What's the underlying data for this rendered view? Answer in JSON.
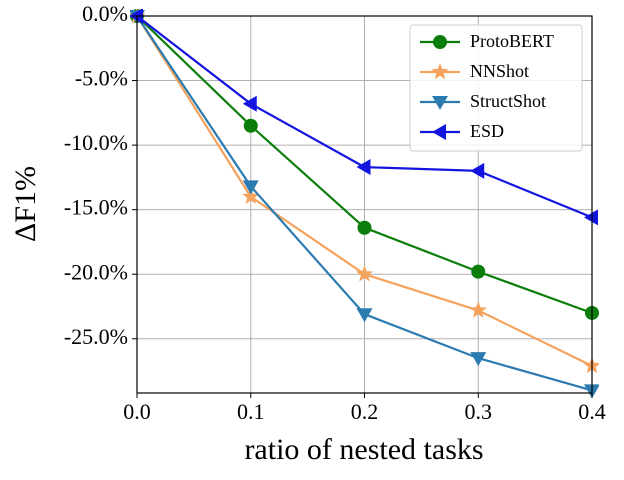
{
  "chart_data": {
    "type": "line",
    "x_label": "ratio of nested tasks",
    "y_label": "ΔF1%",
    "x": [
      0,
      0.1,
      0.2,
      0.3,
      0.4
    ],
    "series": [
      {
        "name": "ProtoBERT",
        "color": "#0a7d0a",
        "marker": "circle",
        "values": [
          0,
          -8.5,
          -16.4,
          -19.8,
          -23.0
        ]
      },
      {
        "name": "NNShot",
        "color": "#f5a25d",
        "marker": "star",
        "values": [
          0,
          -14.0,
          -20.0,
          -22.8,
          -27.1
        ]
      },
      {
        "name": "StructShot",
        "color": "#2b7bb0",
        "marker": "triangle-down",
        "values": [
          0,
          -13.2,
          -23.1,
          -26.5,
          -29.0
        ]
      },
      {
        "name": "ESD",
        "color": "#1515e0",
        "marker": "triangle-left",
        "values": [
          0,
          -6.8,
          -11.7,
          -12.0,
          -15.6
        ]
      }
    ],
    "xlim": [
      0,
      0.4
    ],
    "xticks": [
      {
        "value": 0,
        "label": "0.0"
      },
      0.1,
      0.2,
      0.3,
      0.4
    ],
    "ylim": [
      -29.2,
      0
    ],
    "yticks": [
      {
        "value": 0,
        "label": "0.0%"
      },
      {
        "value": -5,
        "label": "-5.0%"
      },
      {
        "value": -10,
        "label": "-10.0%"
      },
      {
        "value": -15,
        "label": "-15.0%"
      },
      {
        "value": -20,
        "label": "-20.0%"
      },
      {
        "value": -25,
        "label": "-25.0%"
      }
    ],
    "grid": true,
    "legend": "upper right"
  }
}
